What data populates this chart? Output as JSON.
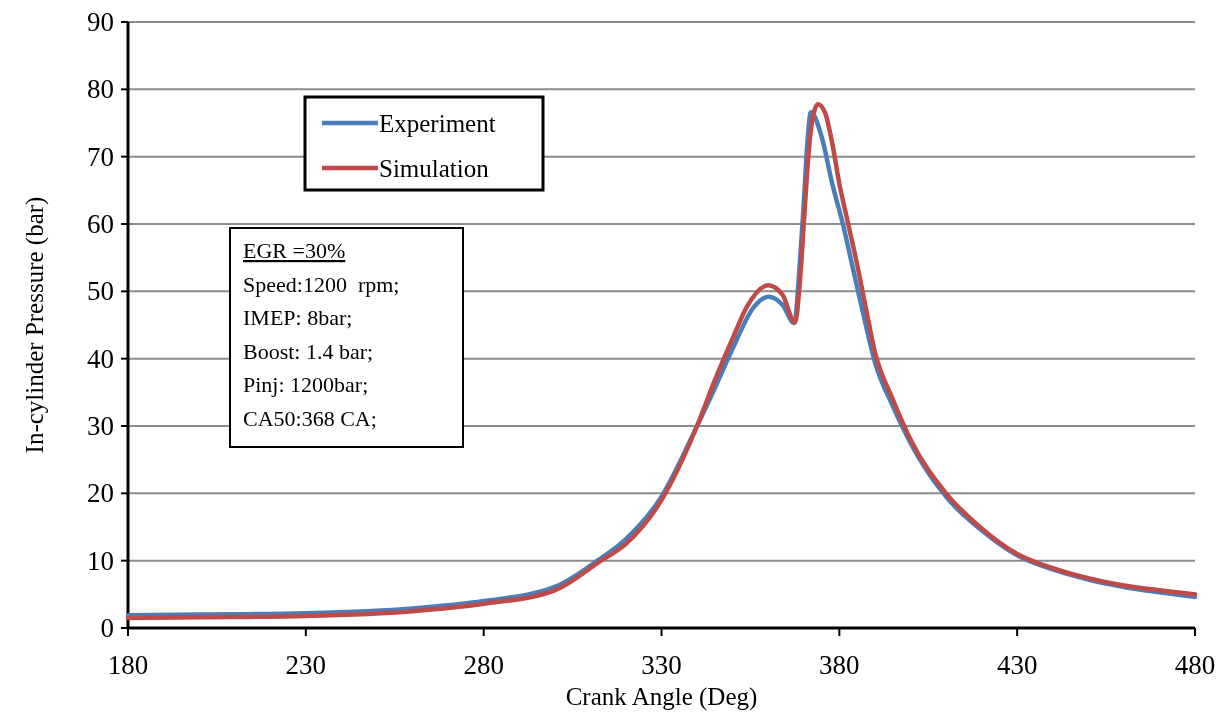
{
  "chart_data": {
    "type": "line",
    "xlabel": "Crank Angle (Deg)",
    "ylabel": "In-cylinder Pressure (bar)",
    "xlim": [
      180,
      480
    ],
    "xticks": [
      180,
      230,
      280,
      330,
      380,
      430,
      480
    ],
    "ylim": [
      0,
      90
    ],
    "yticks": [
      0,
      10,
      20,
      30,
      40,
      50,
      60,
      70,
      80,
      90
    ],
    "grid": "y",
    "legend": "top left",
    "line_style": "solid",
    "marker": "none",
    "annotations": [
      "EGR =30%",
      "Speed:1200  rpm;",
      "IMEP: 8bar;",
      "Boost: 1.4 bar;",
      "Pinj: 1200bar;",
      "CA50:368 CA;"
    ],
    "series": [
      {
        "name": "Experiment",
        "color": "#4a7ebb",
        "x": [
          180,
          200,
          230,
          260,
          280,
          300,
          312,
          320,
          330,
          340,
          346,
          350,
          356,
          360,
          364,
          367.3,
          369,
          370,
          371,
          372,
          375,
          378,
          381,
          384,
          387,
          390,
          395,
          400,
          410,
          420,
          430,
          440,
          450,
          460,
          470,
          480
        ],
        "values": [
          1.9,
          2.0,
          2.2,
          2.9,
          4.0,
          6.1,
          10,
          13.2,
          19.5,
          30,
          36.8,
          41.5,
          47.7,
          49.2,
          48,
          45.3,
          55,
          63,
          72,
          76.6,
          73,
          66,
          60,
          53,
          46,
          39.5,
          33,
          27.5,
          19.5,
          14.5,
          10.8,
          8.7,
          7.2,
          6.1,
          5.3,
          4.6
        ]
      },
      {
        "name": "Simulation",
        "color": "#be4b48",
        "x": [
          180,
          200,
          230,
          260,
          280,
          300,
          313,
          320,
          330,
          340,
          345,
          350,
          354,
          360,
          364,
          367.5,
          369,
          370,
          371,
          372,
          374,
          376,
          378,
          380,
          382.5,
          385,
          387.4,
          390,
          395,
          400,
          410,
          420,
          430,
          440,
          450,
          460,
          470,
          480
        ],
        "values": [
          1.5,
          1.6,
          1.8,
          2.5,
          3.6,
          5.6,
          10,
          12.5,
          19,
          30,
          36.8,
          43,
          47.7,
          50.9,
          49.5,
          45.4,
          52,
          60,
          68,
          74,
          77.8,
          76.5,
          72,
          66,
          60,
          54,
          47.7,
          41,
          34,
          28,
          20,
          14.8,
          11,
          8.9,
          7.4,
          6.3,
          5.6,
          5.0
        ]
      }
    ]
  }
}
